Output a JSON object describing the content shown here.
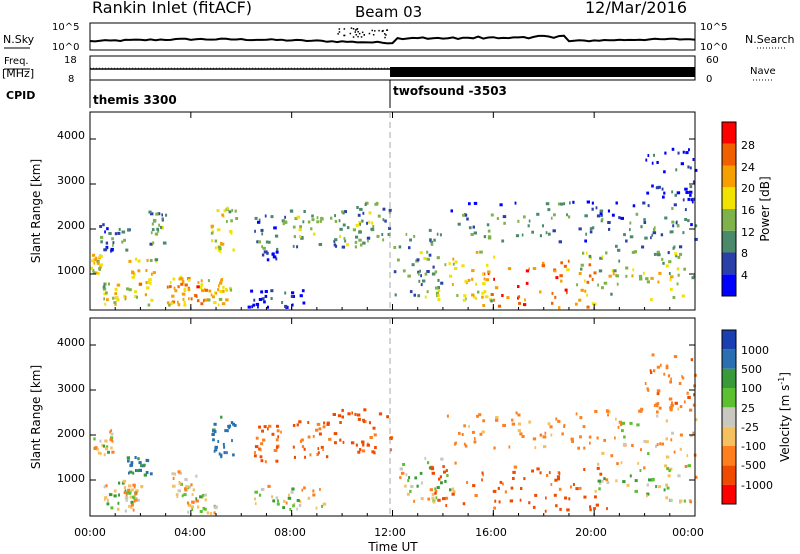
{
  "header": {
    "station": "Rankin Inlet (fitACF)",
    "beam": "Beam 03",
    "date": "12/Mar/2016"
  },
  "noise_panel": {
    "left_label": "N.Sky",
    "right_label": "N.Search",
    "left_ticks": [
      "10^5",
      "10^0"
    ],
    "right_ticks": [
      "10^5",
      "10^0"
    ]
  },
  "freq_panel": {
    "left_label": "Freq.",
    "left_unit": "[MHz]",
    "cpid_label": "CPID",
    "right_label": "Nave",
    "left_ticks": [
      "18",
      "8"
    ],
    "right_ticks": [
      "60",
      "0"
    ]
  },
  "cpid_panel": {
    "segments": [
      {
        "label": "themis 3300",
        "start_hour": 0
      },
      {
        "label": "twofsound -3503",
        "start_hour": 12
      }
    ]
  },
  "colors": {
    "power": [
      "#0000ff",
      "#2b3fa8",
      "#4a8a6a",
      "#7fb24a",
      "#f2e200",
      "#f5a000",
      "#f06000",
      "#ff0000"
    ],
    "velocity": [
      "#ff0000",
      "#f04a00",
      "#ff7f1f",
      "#f5c060",
      "#c8c8c0",
      "#5cc030",
      "#3a9a3a",
      "#2a70b0",
      "#1a3fb0"
    ]
  },
  "chart_data": [
    {
      "type": "heatmap",
      "panel": "power",
      "ylabel": "Slant Range [km]",
      "xlabel": "",
      "x_ticks": [
        "00:00",
        "04:00",
        "08:00",
        "12:00",
        "16:00",
        "20:00",
        "00:00"
      ],
      "y_ticks": [
        "1000",
        "2000",
        "3000",
        "4000"
      ],
      "xlim": [
        0,
        24
      ],
      "ylim": [
        200,
        4600
      ],
      "colorbar": {
        "label": "Power [dB]",
        "ticks": [
          "4",
          "8",
          "12",
          "16",
          "20",
          "24",
          "28"
        ],
        "range": [
          0,
          30
        ]
      },
      "blobs": [
        {
          "t0": 0.0,
          "t1": 0.4,
          "r0": 1000,
          "r1": 1500,
          "v": 20
        },
        {
          "t0": 0.3,
          "t1": 1.5,
          "r0": 1500,
          "r1": 2100,
          "v": 11
        },
        {
          "t0": 0.5,
          "t1": 1.5,
          "r0": 250,
          "r1": 800,
          "v": 18
        },
        {
          "t0": 1.5,
          "t1": 2.6,
          "r0": 300,
          "r1": 1400,
          "v": 20
        },
        {
          "t0": 2.3,
          "t1": 3.0,
          "r0": 1600,
          "r1": 2400,
          "v": 14
        },
        {
          "t0": 3.0,
          "t1": 3.8,
          "r0": 300,
          "r1": 1000,
          "v": 24
        },
        {
          "t0": 3.6,
          "t1": 4.6,
          "r0": 260,
          "r1": 900,
          "v": 25
        },
        {
          "t0": 4.6,
          "t1": 5.6,
          "r0": 300,
          "r1": 900,
          "v": 20
        },
        {
          "t0": 4.7,
          "t1": 5.8,
          "r0": 1500,
          "r1": 2500,
          "v": 19
        },
        {
          "t0": 6.2,
          "t1": 8.5,
          "r0": 250,
          "r1": 650,
          "v": 6
        },
        {
          "t0": 6.5,
          "t1": 7.4,
          "r0": 1300,
          "r1": 2300,
          "v": 10
        },
        {
          "t0": 7.6,
          "t1": 9.3,
          "r0": 1600,
          "r1": 2400,
          "v": 15
        },
        {
          "t0": 9.5,
          "t1": 11.0,
          "r0": 1500,
          "r1": 2400,
          "v": 14
        },
        {
          "t0": 10.5,
          "t1": 11.9,
          "r0": 1700,
          "r1": 2600,
          "v": 14
        },
        {
          "t0": 12.0,
          "t1": 14.0,
          "r0": 500,
          "r1": 2000,
          "v": 12
        },
        {
          "t0": 13.0,
          "t1": 16.0,
          "r0": 400,
          "r1": 1500,
          "v": 20
        },
        {
          "t0": 15.5,
          "t1": 20.0,
          "r0": 250,
          "r1": 1300,
          "v": 26
        },
        {
          "t0": 19.0,
          "t1": 24.0,
          "r0": 400,
          "r1": 1500,
          "v": 17
        },
        {
          "t0": 14.0,
          "t1": 20.5,
          "r0": 1700,
          "r1": 2600,
          "v": 11
        },
        {
          "t0": 20.5,
          "t1": 24.0,
          "r0": 1500,
          "r1": 2600,
          "v": 11
        },
        {
          "t0": 22.0,
          "t1": 24.0,
          "r0": 2600,
          "r1": 3800,
          "v": 7
        }
      ]
    },
    {
      "type": "heatmap",
      "panel": "velocity",
      "ylabel": "Slant Range [km]",
      "xlabel": "Time UT",
      "x_ticks": [
        "00:00",
        "04:00",
        "08:00",
        "12:00",
        "16:00",
        "20:00",
        "00:00"
      ],
      "y_ticks": [
        "1000",
        "2000",
        "3000",
        "4000"
      ],
      "xlim": [
        0,
        24
      ],
      "ylim": [
        200,
        4600
      ],
      "colorbar": {
        "label": "Velocity [m s",
        "label_exponent": "-1",
        "label_close": "]",
        "ticks": [
          "1000",
          "500",
          "100",
          "25",
          "-25",
          "-100",
          "-500",
          "-1000"
        ],
        "range": [
          -1000,
          1000
        ]
      },
      "blobs": [
        {
          "t0": 0.1,
          "t1": 0.9,
          "r0": 1500,
          "r1": 2100,
          "v": 60
        },
        {
          "t0": 0.5,
          "t1": 1.8,
          "r0": 250,
          "r1": 1000,
          "v": 90
        },
        {
          "t0": 1.4,
          "t1": 2.4,
          "r0": 1100,
          "r1": 1500,
          "v": 600
        },
        {
          "t0": 1.3,
          "t1": 2.0,
          "r0": 500,
          "r1": 900,
          "v": 0
        },
        {
          "t0": 3.2,
          "t1": 4.2,
          "r0": 500,
          "r1": 1200,
          "v": 0
        },
        {
          "t0": 3.8,
          "t1": 5.0,
          "r0": 250,
          "r1": 700,
          "v": 60
        },
        {
          "t0": 4.7,
          "t1": 5.8,
          "r0": 1500,
          "r1": 2500,
          "v": 700
        },
        {
          "t0": 6.5,
          "t1": 7.6,
          "r0": 1400,
          "r1": 2200,
          "v": -400
        },
        {
          "t0": 8.0,
          "t1": 9.5,
          "r0": 1500,
          "r1": 2300,
          "v": -400
        },
        {
          "t0": 9.5,
          "t1": 11.9,
          "r0": 1600,
          "r1": 2600,
          "v": -500
        },
        {
          "t0": 6.5,
          "t1": 9.5,
          "r0": 300,
          "r1": 900,
          "v": 80
        },
        {
          "t0": 12.0,
          "t1": 14.5,
          "r0": 500,
          "r1": 1500,
          "v": 70
        },
        {
          "t0": 13.5,
          "t1": 20.5,
          "r0": 300,
          "r1": 1300,
          "v": -500
        },
        {
          "t0": 20.0,
          "t1": 24.0,
          "r0": 500,
          "r1": 1400,
          "v": 100
        },
        {
          "t0": 14.0,
          "t1": 20.0,
          "r0": 1700,
          "r1": 2500,
          "v": -120
        },
        {
          "t0": 20.0,
          "t1": 24.0,
          "r0": 1500,
          "r1": 2600,
          "v": 0
        },
        {
          "t0": 22.0,
          "t1": 24.0,
          "r0": 2600,
          "r1": 3800,
          "v": -300
        }
      ]
    }
  ]
}
